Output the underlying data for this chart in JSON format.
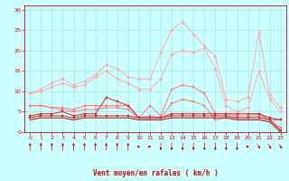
{
  "x": [
    0,
    1,
    2,
    3,
    4,
    5,
    6,
    7,
    8,
    9,
    10,
    11,
    12,
    13,
    14,
    15,
    16,
    17,
    18,
    19,
    20,
    21,
    22,
    23
  ],
  "series": [
    {
      "color": "#ffaaaa",
      "values": [
        9.5,
        10.5,
        12.0,
        13.0,
        11.5,
        12.5,
        14.0,
        16.5,
        15.5,
        13.5,
        13.0,
        13.0,
        19.5,
        25.0,
        27.0,
        24.0,
        21.0,
        18.5,
        8.0,
        7.5,
        8.5,
        24.5,
        9.0,
        6.0
      ],
      "marker": "D",
      "markersize": 1.8
    },
    {
      "color": "#ffaaaa",
      "values": [
        9.5,
        10.0,
        11.0,
        12.0,
        11.0,
        11.5,
        13.5,
        15.0,
        13.0,
        12.0,
        10.5,
        10.5,
        13.0,
        19.0,
        20.0,
        19.5,
        20.5,
        15.5,
        6.5,
        5.0,
        6.0,
        15.0,
        8.0,
        5.0
      ],
      "marker": "D",
      "markersize": 1.8
    },
    {
      "color": "#ff7777",
      "values": [
        6.5,
        6.5,
        6.0,
        6.0,
        5.5,
        6.5,
        6.5,
        6.5,
        6.5,
        6.5,
        3.5,
        6.5,
        4.0,
        10.5,
        11.5,
        11.0,
        9.5,
        4.5,
        4.5,
        4.0,
        4.0,
        4.5,
        3.0,
        3.0
      ],
      "marker": "s",
      "markersize": 1.8
    },
    {
      "color": "#ff7777",
      "values": [
        6.5,
        6.5,
        6.0,
        5.5,
        5.0,
        5.5,
        5.5,
        6.0,
        6.0,
        5.5,
        3.5,
        4.0,
        3.5,
        7.0,
        8.0,
        7.5,
        6.5,
        3.0,
        3.5,
        3.5,
        3.5,
        4.0,
        3.0,
        1.0
      ],
      "marker": "s",
      "markersize": 1.8
    },
    {
      "color": "#dd2222",
      "values": [
        4.0,
        4.5,
        4.5,
        5.0,
        4.0,
        4.5,
        4.5,
        8.5,
        7.5,
        6.5,
        3.5,
        3.5,
        3.5,
        4.5,
        4.5,
        4.5,
        4.5,
        4.5,
        4.5,
        4.5,
        4.5,
        4.5,
        3.5,
        3.0
      ],
      "marker": "s",
      "markersize": 1.8
    },
    {
      "color": "#dd2222",
      "values": [
        3.5,
        4.0,
        4.0,
        4.0,
        3.5,
        4.0,
        4.0,
        4.0,
        4.0,
        4.0,
        3.5,
        3.5,
        3.5,
        4.0,
        4.0,
        4.0,
        4.0,
        4.0,
        4.0,
        3.5,
        3.5,
        3.5,
        3.0,
        0.5
      ],
      "marker": "s",
      "markersize": 1.8
    },
    {
      "color": "#aa0000",
      "values": [
        3.0,
        3.5,
        3.5,
        3.5,
        3.0,
        3.5,
        3.5,
        3.5,
        3.5,
        3.5,
        3.0,
        3.0,
        3.0,
        3.5,
        3.5,
        3.5,
        3.5,
        3.5,
        3.5,
        3.0,
        3.0,
        3.0,
        2.5,
        0.0
      ],
      "marker": "None",
      "markersize": 0
    }
  ],
  "wind_directions": [
    0,
    0,
    0,
    0,
    0,
    0,
    0,
    0,
    0,
    0,
    90,
    90,
    180,
    180,
    180,
    180,
    180,
    180,
    180,
    180,
    90,
    135,
    135,
    135
  ],
  "xlabel": "Vent moyen/en rafales ( km/h )",
  "ylim": [
    0,
    31
  ],
  "xlim": [
    -0.5,
    23.5
  ],
  "yticks": [
    0,
    5,
    10,
    15,
    20,
    25,
    30
  ],
  "xticks": [
    0,
    1,
    2,
    3,
    4,
    5,
    6,
    7,
    8,
    9,
    10,
    11,
    12,
    13,
    14,
    15,
    16,
    17,
    18,
    19,
    20,
    21,
    22,
    23
  ],
  "bg_color": "#ccffff",
  "grid_color": "#99dddd",
  "axis_color": "#cc0000",
  "label_color": "#cc0000",
  "tick_color": "#cc0000",
  "arrow_color": "#cc0000"
}
